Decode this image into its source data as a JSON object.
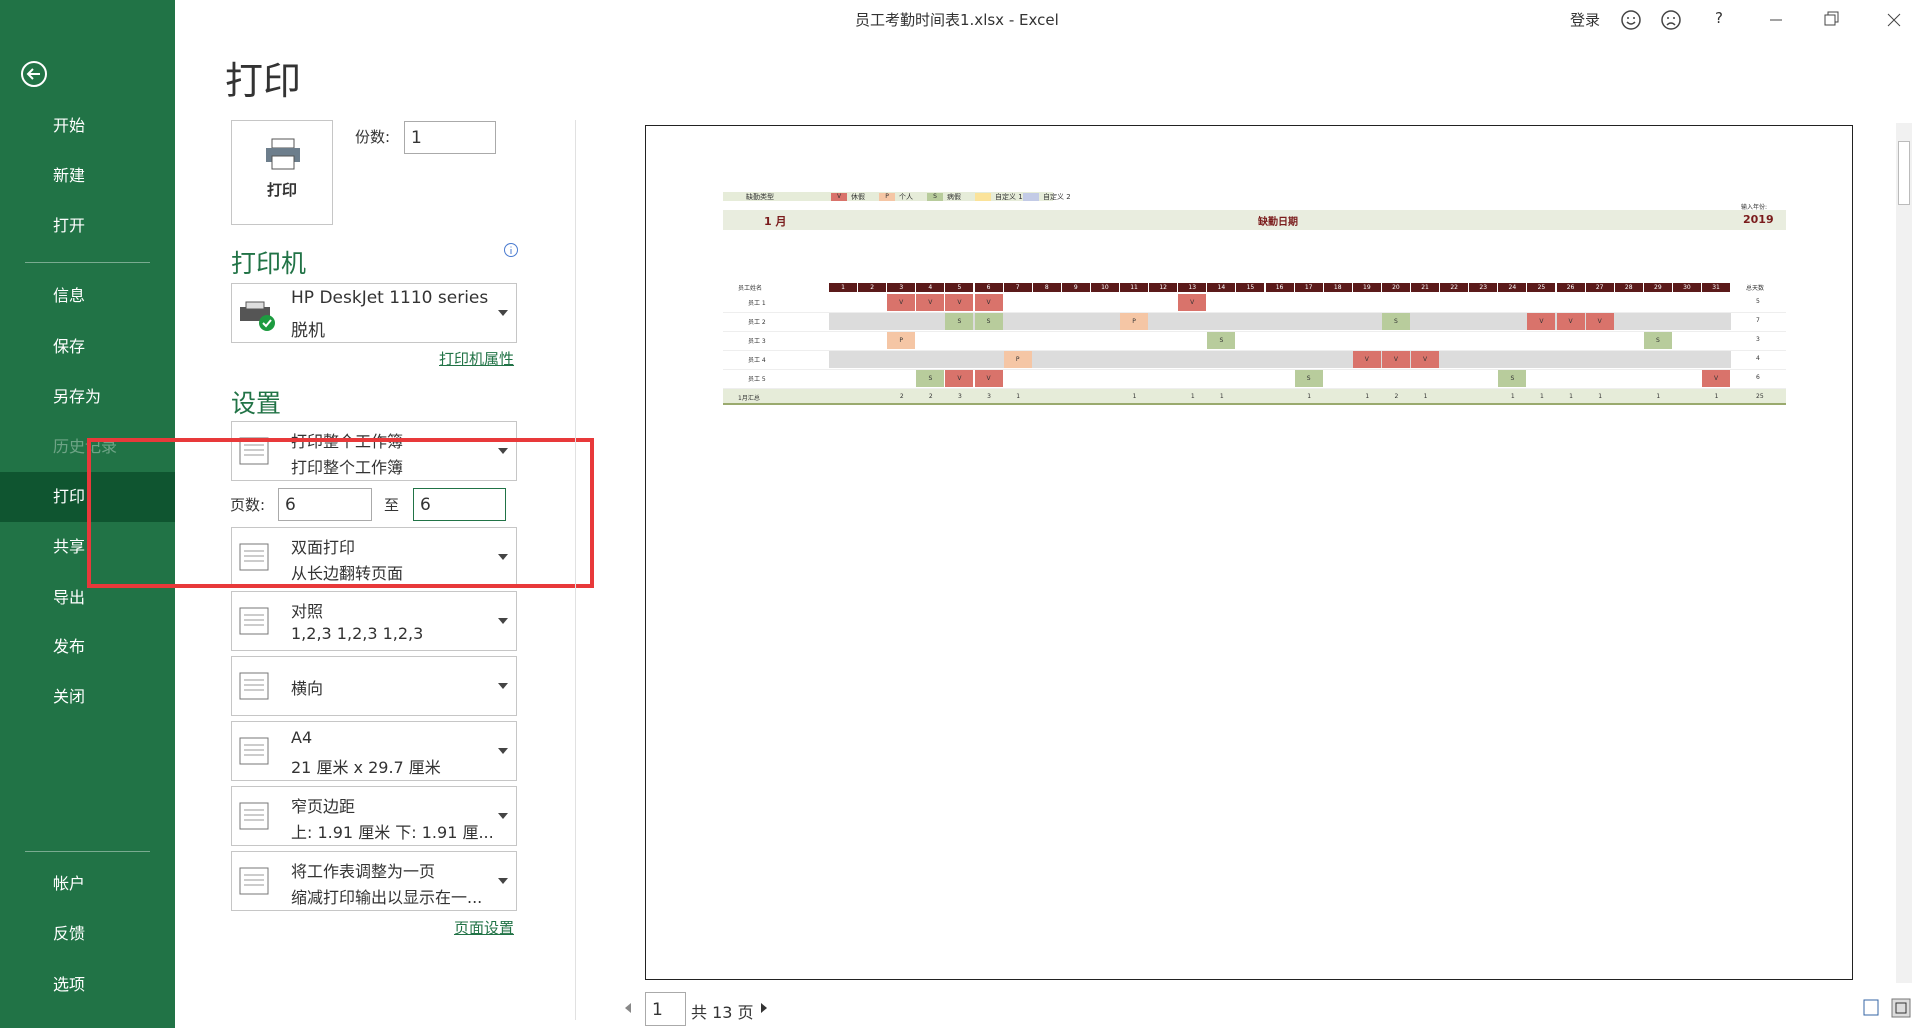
{
  "window": {
    "title": "员工考勤时间表1.xlsx  -  Excel",
    "sign_in": "登录",
    "help": "?"
  },
  "sidebar": {
    "items": [
      "开始",
      "新建",
      "打开",
      "信息",
      "保存",
      "另存为",
      "历史记录",
      "打印",
      "共享",
      "导出",
      "发布",
      "关闭",
      "帐户",
      "反馈",
      "选项"
    ],
    "selected": 7,
    "disabled": [
      6
    ]
  },
  "print": {
    "heading": "打印",
    "print_button": "打印",
    "copies_label": "份数:",
    "copies": 1,
    "printer_heading": "打印机",
    "printer": {
      "name": "HP DeskJet 1110 series",
      "status": "脱机"
    },
    "printer_properties": "打印机属性",
    "settings_heading": "设置",
    "settings": [
      {
        "title": "打印整个工作簿",
        "subtitle": "打印整个工作簿"
      },
      {
        "title": "双面打印",
        "subtitle": "从长边翻转页面"
      },
      {
        "title": "对照",
        "subtitle": "1,2,3    1,2,3    1,2,3"
      },
      {
        "title": "横向"
      },
      {
        "title": "A4",
        "subtitle": "21 厘米 x 29.7 厘米"
      },
      {
        "title": "窄页边距",
        "subtitle": "上: 1.91 厘米 下: 1.91 厘..."
      },
      {
        "title": "将工作表调整为一页",
        "subtitle": "缩减打印输出以显示在一..."
      }
    ],
    "pages_label": "页数:",
    "pages_from": 6,
    "pages_to_label": "至",
    "pages_to": 6,
    "page_setup": "页面设置"
  },
  "preview": {
    "current_page": 1,
    "page_count_label": "共 13 页"
  },
  "sheet": {
    "title": "员工考勤时间表",
    "legend_label": "缺勤类型",
    "legend": [
      {
        "code": "V",
        "label": "休假",
        "color": "#d9736b"
      },
      {
        "code": "P",
        "label": "个人",
        "color": "#f5c6a5"
      },
      {
        "code": "S",
        "label": "病假",
        "color": "#b8cc9c"
      },
      {
        "label": "自定义 1",
        "color": "#fbe39a"
      },
      {
        "label": "自定义 2",
        "color": "#c3cbe6"
      }
    ],
    "month": "1 月",
    "header": "缺勤日期",
    "year_label": "输入年份:",
    "year": 2019,
    "name_header": "员工姓名",
    "total_header": "总天数",
    "days": [
      1,
      2,
      3,
      4,
      5,
      6,
      7,
      8,
      9,
      10,
      11,
      12,
      13,
      14,
      15,
      16,
      17,
      18,
      19,
      20,
      21,
      22,
      23,
      24,
      25,
      26,
      27,
      28,
      29,
      30,
      31
    ],
    "employees": [
      {
        "name": "员工 1",
        "marks": [
          {
            "day": 3,
            "code": "V"
          },
          {
            "day": 4,
            "code": "V"
          },
          {
            "day": 5,
            "code": "V"
          },
          {
            "day": 6,
            "code": "V"
          },
          {
            "day": 13,
            "code": "V"
          }
        ],
        "total": 5
      },
      {
        "name": "员工 2",
        "marks": [
          {
            "day": 5,
            "code": "S"
          },
          {
            "day": 6,
            "code": "S"
          },
          {
            "day": 11,
            "code": "P"
          },
          {
            "day": 20,
            "code": "S"
          },
          {
            "day": 25,
            "code": "V"
          },
          {
            "day": 26,
            "code": "V"
          },
          {
            "day": 27,
            "code": "V"
          }
        ],
        "total": 7
      },
      {
        "name": "员工 3",
        "marks": [
          {
            "day": 3,
            "code": "P"
          },
          {
            "day": 14,
            "code": "S"
          },
          {
            "day": 29,
            "code": "S"
          }
        ],
        "total": 3
      },
      {
        "name": "员工 4",
        "marks": [
          {
            "day": 7,
            "code": "P"
          },
          {
            "day": 19,
            "code": "V"
          },
          {
            "day": 20,
            "code": "V"
          },
          {
            "day": 21,
            "code": "V"
          }
        ],
        "total": 4
      },
      {
        "name": "员工 5",
        "marks": [
          {
            "day": 4,
            "code": "S"
          },
          {
            "day": 5,
            "code": "V"
          },
          {
            "day": 6,
            "code": "V"
          },
          {
            "day": 17,
            "code": "S"
          },
          {
            "day": 24,
            "code": "S"
          },
          {
            "day": 31,
            "code": "V"
          }
        ],
        "total": 6
      }
    ],
    "summary": {
      "label": "1月汇总",
      "counts": [
        {
          "day": 3,
          "count": 2
        },
        {
          "day": 4,
          "count": 2
        },
        {
          "day": 5,
          "count": 3
        },
        {
          "day": 6,
          "count": 3
        },
        {
          "day": 7,
          "count": 1
        },
        {
          "day": 11,
          "count": 1
        },
        {
          "day": 13,
          "count": 1
        },
        {
          "day": 14,
          "count": 1
        },
        {
          "day": 17,
          "count": 1
        },
        {
          "day": 19,
          "count": 1
        },
        {
          "day": 20,
          "count": 2
        },
        {
          "day": 21,
          "count": 1
        },
        {
          "day": 24,
          "count": 1
        },
        {
          "day": 25,
          "count": 1
        },
        {
          "day": 26,
          "count": 1
        },
        {
          "day": 27,
          "count": 1
        },
        {
          "day": 29,
          "count": 1
        },
        {
          "day": 31,
          "count": 1
        }
      ],
      "total": 25
    }
  }
}
